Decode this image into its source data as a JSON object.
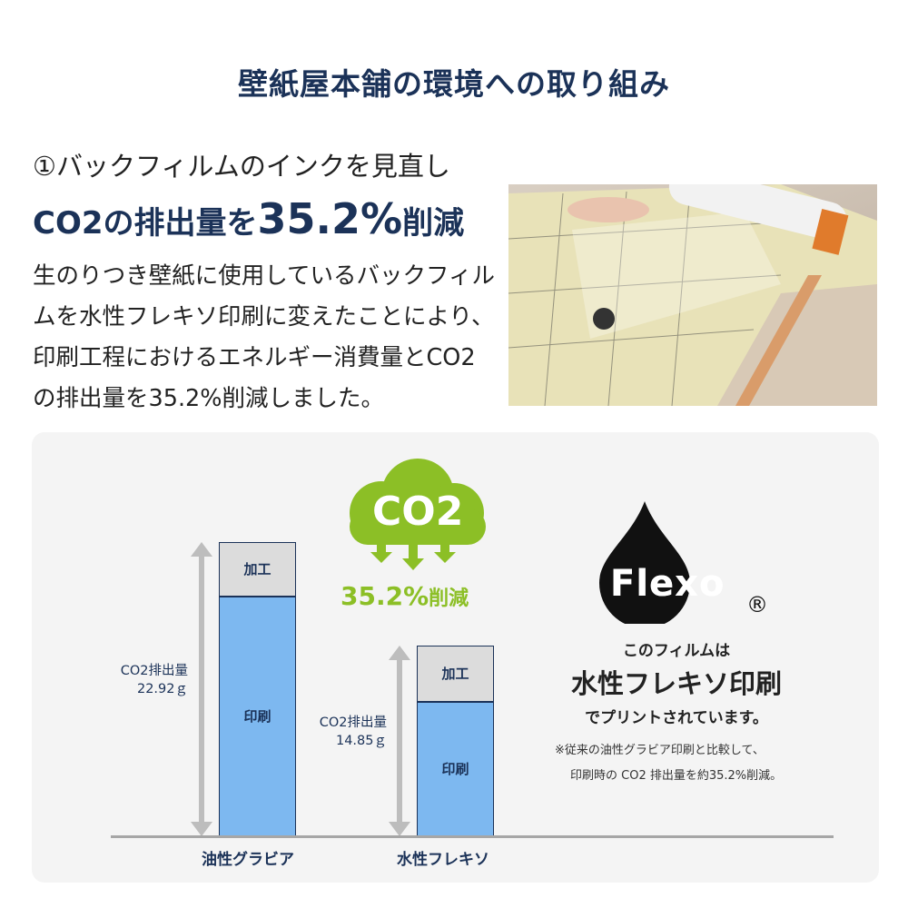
{
  "header": {
    "title": "壁紙屋本舗の環境への取り組み"
  },
  "section": {
    "subtitle": "①バックフィルムのインクを見直し",
    "headline_pre": "CO2の排出量を",
    "headline_num": "35.2%",
    "headline_post": "削減",
    "body": "生のりつき壁紙に使用しているバックフィルムを水性フレキソ印刷に変えたことにより、印刷工程におけるエネルギー消費量とCO2の排出量を35.2%削減しました。"
  },
  "badge": {
    "co2": "CO2",
    "reduction_num": "35.2%",
    "reduction_word": "削減",
    "color": "#8cbf26"
  },
  "flexo": {
    "logo": "Flexo",
    "registered": "®",
    "line1": "このフィルムは",
    "line2": "水性フレキソ印刷",
    "line3": "でプリントされています。",
    "note1": "※従来の油性グラビア印刷と比較して、",
    "note2": "印刷時の CO2 排出量を約35.2%削減。"
  },
  "chart_data": {
    "type": "bar",
    "stacked": true,
    "categories": [
      "油性グラビア",
      "水性フレキソ"
    ],
    "totals": [
      22.92,
      14.85
    ],
    "total_labels": [
      {
        "line1": "CO2排出量",
        "line2": "22.92ｇ"
      },
      {
        "line1": "CO2排出量",
        "line2": "14.85ｇ"
      }
    ],
    "unit": "g",
    "series": [
      {
        "name": "印刷",
        "values": [
          18.7,
          10.5
        ],
        "color": "#7db8f0"
      },
      {
        "name": "加工",
        "values": [
          4.22,
          4.35
        ],
        "color": "#dcdcdc"
      }
    ],
    "ylim": [
      0,
      22.92
    ],
    "grid": false
  }
}
